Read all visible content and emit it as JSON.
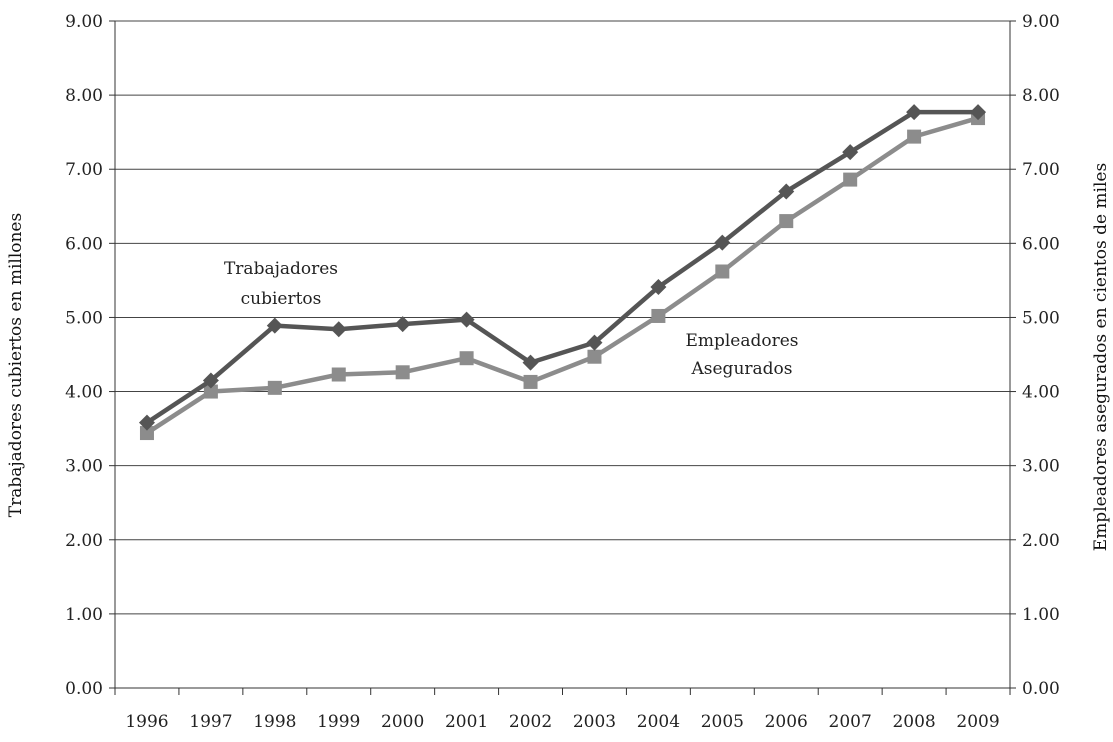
{
  "chart_data": {
    "type": "line",
    "categories": [
      "1996",
      "1997",
      "1998",
      "1999",
      "2000",
      "2001",
      "2002",
      "2003",
      "2004",
      "2005",
      "2006",
      "2007",
      "2008",
      "2009"
    ],
    "series": [
      {
        "name": "Trabajadores cubiertos",
        "axis": "left",
        "marker": "diamond",
        "color": "#555555",
        "values": [
          3.58,
          4.15,
          4.89,
          4.84,
          4.91,
          4.97,
          4.39,
          4.66,
          5.41,
          6.01,
          6.7,
          7.23,
          7.77,
          7.77
        ]
      },
      {
        "name": "Empleadores Asegurados",
        "axis": "right",
        "marker": "square",
        "color": "#8c8c8c",
        "values": [
          3.44,
          4.0,
          4.05,
          4.23,
          4.26,
          4.45,
          4.13,
          4.47,
          5.02,
          5.62,
          6.3,
          6.86,
          7.44,
          7.69
        ]
      }
    ],
    "title": "",
    "xlabel": "",
    "ylabel": "Trabajadores cubiertos en millones",
    "y2label": "Empleadores asegurados en cientos de miles",
    "ylim": [
      0,
      9
    ],
    "y2lim": [
      0,
      9
    ],
    "yticks": [
      "0.00",
      "1.00",
      "2.00",
      "3.00",
      "4.00",
      "5.00",
      "6.00",
      "7.00",
      "8.00",
      "9.00"
    ],
    "grid": true,
    "annotations": [
      {
        "lines": [
          "Trabajadores",
          "cubiertos"
        ],
        "series": 0
      },
      {
        "lines": [
          "Empleadores",
          "Asegurados"
        ],
        "series": 1
      }
    ]
  }
}
